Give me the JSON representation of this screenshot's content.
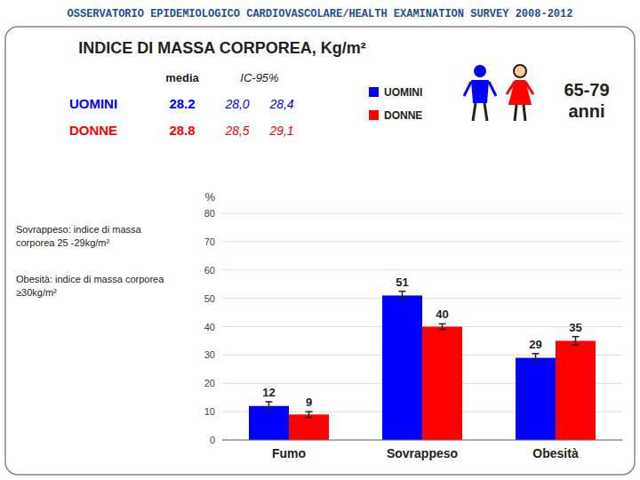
{
  "chart_data": {
    "type": "bar",
    "title": "OSSERVATORIO EPIDEMIOLOGICO CARDIOVASCOLARE/HEALTH EXAMINATION SURVEY 2008-2012",
    "subtitle": "INDICE DI MASSA CORPOREA, Kg/m²",
    "categories": [
      "Fumo",
      "Sovrappeso",
      "Obesità"
    ],
    "series": [
      {
        "name": "UOMINI",
        "color": "#0000FF",
        "values": [
          12,
          51,
          29
        ],
        "errors": [
          1.5,
          1.5,
          1.5
        ]
      },
      {
        "name": "DONNE",
        "color": "#FF0000",
        "values": [
          9,
          40,
          35
        ],
        "errors": [
          1.0,
          1.0,
          1.5
        ]
      }
    ],
    "ylabel": "%",
    "ylim": [
      0,
      80
    ],
    "yticks": [
      0,
      10,
      20,
      30,
      40,
      50,
      60,
      70,
      80
    ],
    "grid": true,
    "data_labels": true,
    "legend": "top",
    "table": {
      "header": [
        "media",
        "IC-95%"
      ],
      "rows": [
        {
          "label": "UOMINI",
          "cells": [
            "28.2",
            "28,0",
            "28,4"
          ]
        },
        {
          "label": "DONNE",
          "cells": [
            "28.8",
            "28,5",
            "29,1"
          ]
        }
      ]
    },
    "annotations": [
      "65-79\nanni",
      "Sovrappeso: indice di massa\ncorporea 25 -29kg/m²",
      "Obesità: indice di massa corporea\n≥30kg/m²"
    ]
  }
}
